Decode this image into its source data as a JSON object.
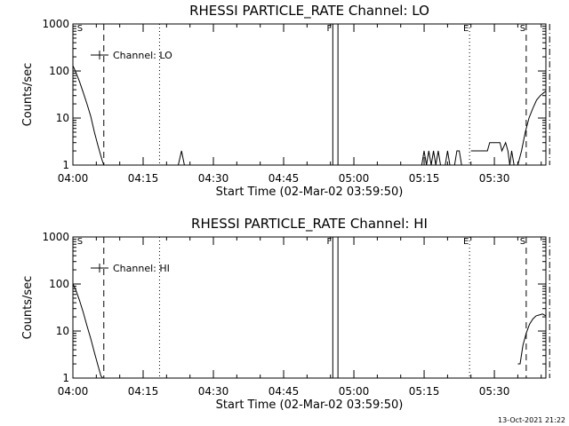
{
  "chart_data": [
    {
      "type": "line",
      "title": "RHESSI PARTICLE_RATE Channel: LO",
      "xlabel": "Start Time (02-Mar-02 03:59:50)",
      "ylabel": "Counts/sec",
      "yscale": "log",
      "ylim": [
        1,
        1000
      ],
      "xlim_minutes_from_0400": [
        0,
        101
      ],
      "ytick_labels": [
        "1",
        "10",
        "100",
        "1000"
      ],
      "xtick_labels": [
        "04:00",
        "04:15",
        "04:30",
        "04:45",
        "05:00",
        "05:15",
        "05:30"
      ],
      "legend": {
        "label": "Channel: LO",
        "position": "top-left"
      },
      "markers": [
        {
          "label": "S",
          "time_min": 1.5,
          "style": "none"
        },
        {
          "label": "",
          "time_min": 6.6,
          "style": "dashed"
        },
        {
          "label": "",
          "time_min": 18.5,
          "style": "dotted"
        },
        {
          "label": "F",
          "time_min": 55.5,
          "style": "solid"
        },
        {
          "label": "",
          "time_min": 56.6,
          "style": "solid"
        },
        {
          "label": "E",
          "time_min": 84.7,
          "style": "dotted"
        },
        {
          "label": "S",
          "time_min": 96.8,
          "style": "dashed"
        },
        {
          "label": "",
          "time_min": 101.8,
          "style": "dashdot"
        }
      ],
      "series": [
        {
          "x": [
            0,
            0.6,
            1.4,
            2.2,
            3.0,
            3.8,
            4.6,
            5.4,
            6.2,
            6.6
          ],
          "y": [
            130,
            95,
            60,
            35,
            20,
            11,
            5,
            2.5,
            1.3,
            1
          ]
        },
        {
          "x": [
            22.5,
            23.2,
            23.8
          ],
          "y": [
            1,
            2,
            1
          ]
        },
        {
          "x": [
            74.5,
            75.0,
            75.5,
            76.0,
            76.5,
            77.0,
            77.5,
            78.0,
            78.5,
            79.5,
            80.0,
            80.5,
            81.5,
            82.0,
            82.5,
            83.0
          ],
          "y": [
            1,
            2,
            1,
            2,
            1,
            2,
            1,
            2,
            1,
            1,
            2,
            1,
            1,
            2,
            2,
            1
          ]
        },
        {
          "x": [
            85.0,
            85.3,
            88.5,
            89.0,
            89.6,
            90.4,
            91.2,
            91.6,
            92.4,
            92.9,
            93.3,
            93.7,
            94.2
          ],
          "y": [
            2,
            2,
            2,
            3,
            3,
            3,
            3,
            2,
            3,
            2,
            1,
            2,
            1
          ]
        },
        {
          "x": [
            95.0,
            95.8,
            96.6,
            97.4,
            98.2,
            99.0,
            99.8,
            100.6,
            101.6,
            102.0
          ],
          "y": [
            1,
            2,
            5,
            10,
            16,
            24,
            30,
            35,
            37,
            35
          ]
        }
      ]
    },
    {
      "type": "line",
      "title": "RHESSI PARTICLE_RATE Channel: HI",
      "xlabel": "Start Time (02-Mar-02 03:59:50)",
      "ylabel": "Counts/sec",
      "yscale": "log",
      "ylim": [
        1,
        1000
      ],
      "xlim_minutes_from_0400": [
        0,
        101
      ],
      "ytick_labels": [
        "1",
        "10",
        "100",
        "1000"
      ],
      "xtick_labels": [
        "04:00",
        "04:15",
        "04:30",
        "04:45",
        "05:00",
        "05:15",
        "05:30"
      ],
      "legend": {
        "label": "Channel: HI",
        "position": "top-left"
      },
      "markers": [
        {
          "label": "S",
          "time_min": 1.5,
          "style": "none"
        },
        {
          "label": "",
          "time_min": 6.6,
          "style": "dashed"
        },
        {
          "label": "",
          "time_min": 18.5,
          "style": "dotted"
        },
        {
          "label": "F",
          "time_min": 55.5,
          "style": "solid"
        },
        {
          "label": "",
          "time_min": 56.6,
          "style": "solid"
        },
        {
          "label": "E",
          "time_min": 84.7,
          "style": "dotted"
        },
        {
          "label": "S",
          "time_min": 96.8,
          "style": "dashed"
        },
        {
          "label": "",
          "time_min": 101.8,
          "style": "dashdot"
        }
      ],
      "series": [
        {
          "x": [
            0,
            0.6,
            1.4,
            2.2,
            3.0,
            3.8,
            4.6,
            5.4,
            6.0,
            6.4
          ],
          "y": [
            100,
            75,
            45,
            25,
            13,
            7,
            3.5,
            1.8,
            1.1,
            1
          ]
        },
        {
          "x": [
            95.0,
            95.5,
            96.1,
            96.8,
            97.5,
            98.2,
            98.9,
            99.6,
            100.3,
            101.0
          ],
          "y": [
            2,
            2,
            5,
            9,
            14,
            18,
            21,
            22,
            23,
            21
          ]
        }
      ]
    }
  ],
  "timestamp": "13-Oct-2021 21:22"
}
